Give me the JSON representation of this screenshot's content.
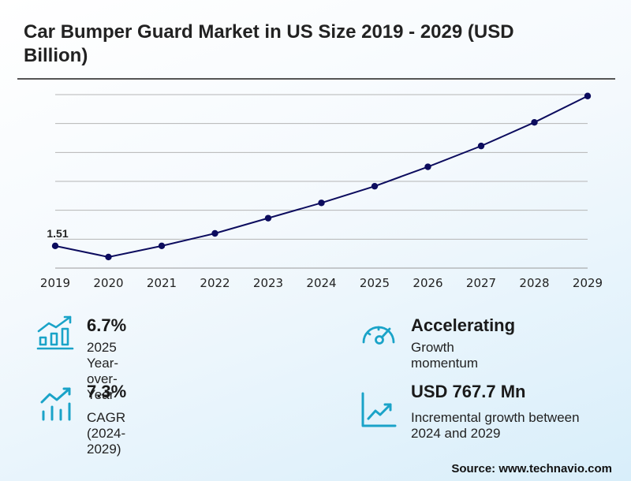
{
  "title": "Car Bumper Guard Market in US Size 2019 - 2029 (USD Billion)",
  "chart_data": {
    "type": "line",
    "x": [
      "2019",
      "2020",
      "2021",
      "2022",
      "2023",
      "2024",
      "2025",
      "2026",
      "2027",
      "2028",
      "2029"
    ],
    "values": [
      1.51,
      1.43,
      1.51,
      1.6,
      1.71,
      1.82,
      1.94,
      2.08,
      2.23,
      2.4,
      2.59
    ],
    "data_labels": [
      "1.51"
    ],
    "grid": true,
    "line_color": "#0c0c5e"
  },
  "stats": [
    {
      "icon": "bar-chart-icon",
      "value": "6.7%",
      "desc": "2025 Year-over-Year"
    },
    {
      "icon": "speedometer-icon",
      "value": "Accelerating",
      "desc": "Growth momentum"
    },
    {
      "icon": "trend-bars-icon",
      "value": "7.3%",
      "desc": "CAGR (2024-2029)"
    },
    {
      "icon": "line-trend-icon",
      "value": "USD 767.7 Mn",
      "desc": "Incremental growth between 2024 and 2029"
    }
  ],
  "accent_color": "#1aa3c8",
  "source": "Source: www.technavio.com"
}
